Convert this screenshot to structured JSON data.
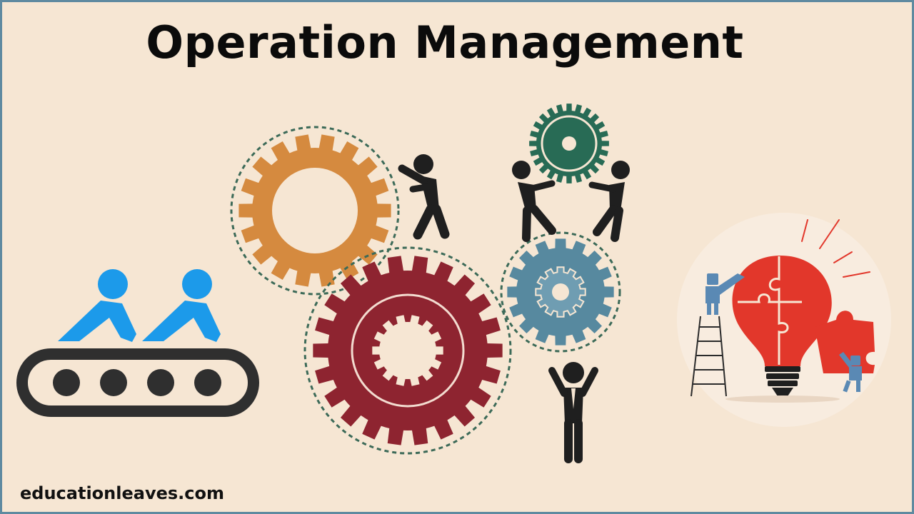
{
  "title": "Operation Management",
  "footer": {
    "site": "educationleaves.com"
  },
  "colors": {
    "background": "#f6e6d3",
    "border": "#5f8aa0",
    "gear_orange": "#d58a3f",
    "gear_red": "#8e2430",
    "gear_steel_blue": "#57899f",
    "gear_green": "#286b55",
    "worker_blue": "#1c9aea",
    "conveyor_dark": "#2f2f2f",
    "bulb_red": "#e2372b"
  },
  "icons": {
    "conveyor": "conveyor-belt-icon",
    "gears": "gear-icon",
    "people": "person-icon",
    "bulb": "lightbulb-puzzle-icon"
  }
}
